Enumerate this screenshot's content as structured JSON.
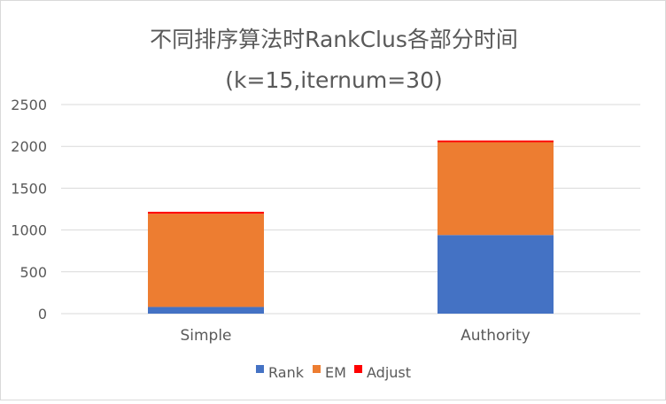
{
  "chart_data": {
    "type": "bar",
    "stacked": true,
    "title": "不同排序算法时RankClus各部分时间",
    "subtitle": "(k=15,iternum=30)",
    "xlabel": "",
    "ylabel": "",
    "categories": [
      "Simple",
      "Authority"
    ],
    "series": [
      {
        "name": "Rank",
        "color": "#4472C4",
        "values": [
          80,
          940
        ]
      },
      {
        "name": "EM",
        "color": "#ED7D31",
        "values": [
          1115,
          1110
        ]
      },
      {
        "name": "Adjust",
        "color": "#FF0000",
        "values": [
          22,
          20
        ]
      }
    ],
    "ylim": [
      0,
      2500
    ],
    "yticks": [
      "0",
      "500",
      "1000",
      "1500",
      "2000",
      "2500"
    ],
    "grid": true,
    "legend_position": "bottom"
  }
}
